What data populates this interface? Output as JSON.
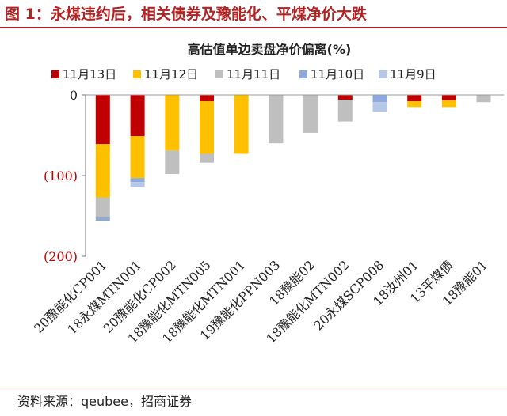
{
  "figure": {
    "title": "图 1：永煤违约后，相关债券及豫能化、平煤净价大跌",
    "source": "资料来源：qeubee，招商证券"
  },
  "colors": {
    "accent": "#b22222",
    "axis_tick_label": "#c00000"
  },
  "chart_data": {
    "type": "bar",
    "stacked": true,
    "title": "高估值单边卖盘净价偏离(%)",
    "xlabel": "",
    "ylabel": "",
    "ylim": [
      -200,
      0
    ],
    "yticks": [
      0,
      -100,
      -200
    ],
    "ytick_labels": [
      "0",
      "(100)",
      "(200)"
    ],
    "grid": false,
    "legend_position": "top",
    "categories": [
      "20豫能化CP001",
      "18永煤MTN001",
      "20豫能化CP002",
      "18豫能化MTN005",
      "18豫能化MTN001",
      "19豫能化PPN003",
      "18豫能02",
      "18豫能化MTN002",
      "20永煤SCP008",
      "18汝州01",
      "13平煤债",
      "18豫能01"
    ],
    "series": [
      {
        "name": "11月13日",
        "color": "#c00000",
        "values": [
          -61,
          -51,
          0,
          -8,
          0,
          0,
          0,
          -6,
          0,
          -8,
          -7,
          0
        ]
      },
      {
        "name": "11月12日",
        "color": "#ffc000",
        "values": [
          -66,
          -52,
          -69,
          -65,
          -73,
          0,
          0,
          0,
          0,
          -7,
          -8,
          0
        ]
      },
      {
        "name": "11月11日",
        "color": "#bfbfbf",
        "values": [
          -25,
          0,
          -29,
          -11,
          0,
          -60,
          -47,
          -27,
          0,
          0,
          0,
          -9
        ]
      },
      {
        "name": "11月10日",
        "color": "#8eaadb",
        "values": [
          -4,
          -5,
          0,
          0,
          0,
          0,
          0,
          0,
          -9,
          0,
          0,
          0
        ]
      },
      {
        "name": "11月9日",
        "color": "#b4c7e7",
        "values": [
          0,
          -6,
          0,
          0,
          0,
          0,
          0,
          0,
          -12,
          0,
          0,
          0
        ]
      }
    ]
  }
}
